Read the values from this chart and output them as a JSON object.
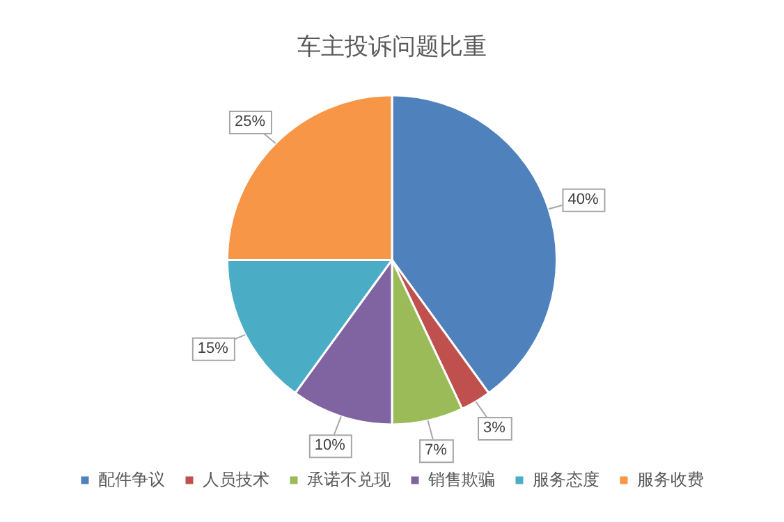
{
  "chart_data": {
    "type": "pie",
    "title": "车主投诉问题比重",
    "categories": [
      "配件争议",
      "人员技术",
      "承诺不兑现",
      "销售欺骗",
      "服务态度",
      "服务收费"
    ],
    "values": [
      40,
      3,
      7,
      10,
      15,
      25
    ],
    "colors": [
      "#4f81bd",
      "#c0504d",
      "#9bbb59",
      "#8064a2",
      "#4bacc6",
      "#f79646"
    ],
    "value_labels": [
      "40%",
      "3%",
      "7%",
      "10%",
      "15%",
      "25%"
    ],
    "legend": "bottom"
  }
}
